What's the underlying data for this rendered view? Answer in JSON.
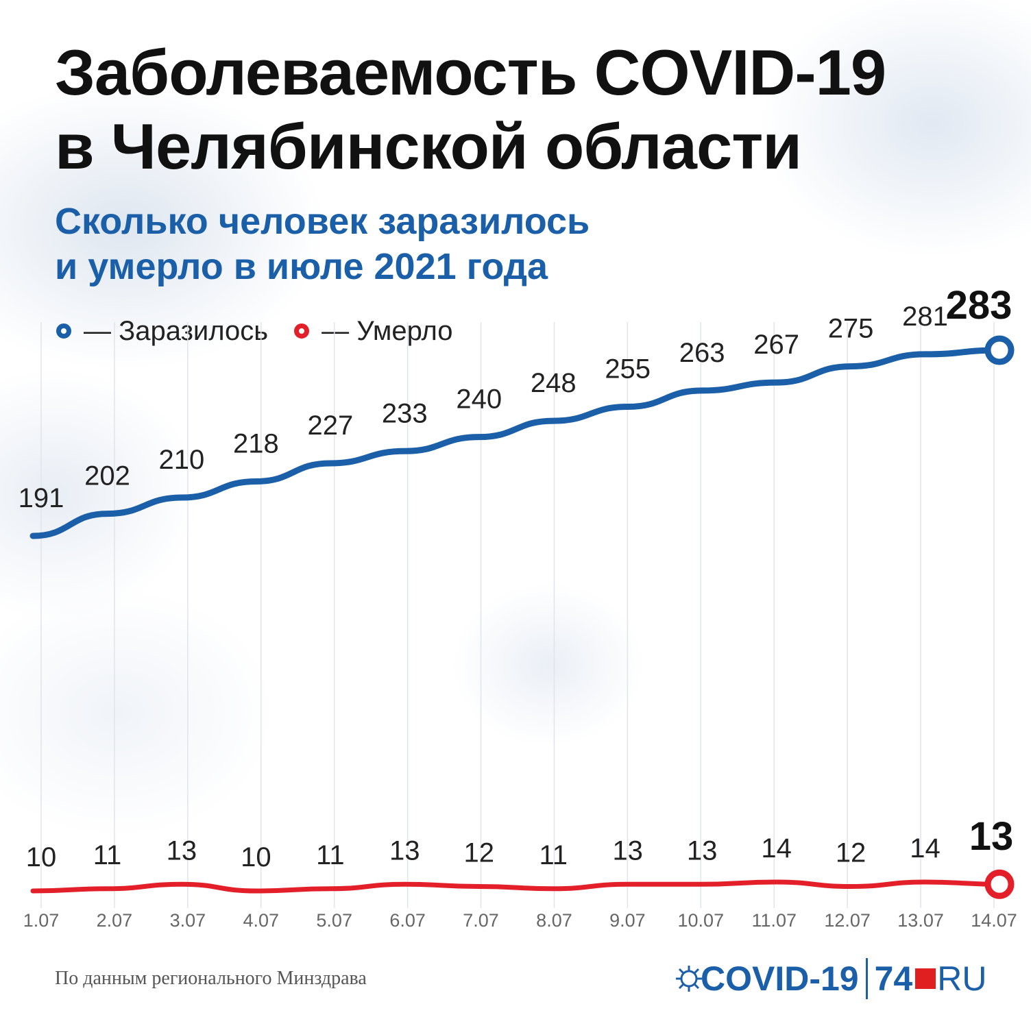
{
  "title": {
    "line1": "Заболеваемость COVID-19",
    "line2": "в Челябинской области"
  },
  "subtitle": {
    "line1": "Сколько человек заразилось",
    "line2": "и умерло в июле 2021 года"
  },
  "legend": {
    "infected": "— Заразилось",
    "deaths": "— Умерло"
  },
  "chart_data": {
    "type": "line",
    "x": [
      "1.07",
      "2.07",
      "3.07",
      "4.07",
      "5.07",
      "6.07",
      "7.07",
      "8.07",
      "9.07",
      "10.07",
      "11.07",
      "12.07",
      "13.07",
      "14.07"
    ],
    "series": [
      {
        "name": "Заразилось",
        "color": "#1a5fa8",
        "values": [
          191,
          202,
          210,
          218,
          227,
          233,
          240,
          248,
          255,
          263,
          267,
          275,
          281,
          283
        ]
      },
      {
        "name": "Умерло",
        "color": "#e3202a",
        "values": [
          10,
          11,
          13,
          10,
          11,
          13,
          12,
          11,
          13,
          13,
          14,
          12,
          14,
          13
        ]
      }
    ],
    "grid": "vertical",
    "legend_position": "top-left"
  },
  "source": "По данным регионального Минздрава",
  "logo": {
    "covid_text": "COVID-19",
    "number": "74",
    "ru": "RU",
    "icon": "virus-icon"
  }
}
